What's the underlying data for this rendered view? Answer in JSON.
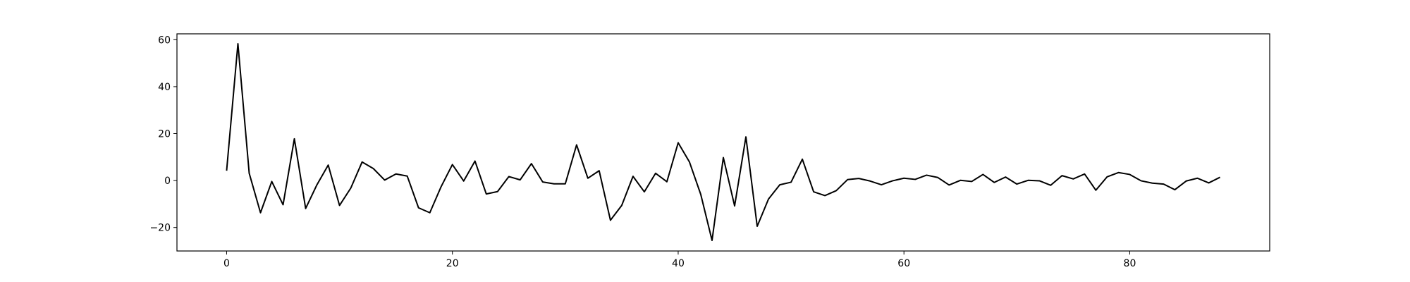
{
  "chart_data": {
    "type": "line",
    "title": "",
    "xlabel": "",
    "ylabel": "",
    "xlim": [
      -4.4,
      92.4
    ],
    "ylim": [
      -30,
      62.5
    ],
    "grid": false,
    "legend": "none",
    "x_ticks": [
      0,
      20,
      40,
      60,
      80
    ],
    "y_ticks": [
      60,
      40,
      20,
      0,
      -20
    ],
    "x_tick_labels": [
      "0",
      "20",
      "40",
      "60",
      "80"
    ],
    "y_tick_labels": [
      "60",
      "40",
      "20",
      "0",
      "−20"
    ],
    "series": [
      {
        "color": "#000000",
        "x": [
          0,
          1,
          2,
          3,
          4,
          5,
          6,
          7,
          8,
          9,
          10,
          11,
          12,
          13,
          14,
          15,
          16,
          17,
          18,
          19,
          20,
          21,
          22,
          23,
          24,
          25,
          26,
          27,
          28,
          29,
          30,
          31,
          32,
          33,
          34,
          35,
          36,
          37,
          38,
          39,
          40,
          41,
          42,
          43,
          44,
          45,
          46,
          47,
          48,
          49,
          50,
          51,
          52,
          53,
          54,
          55,
          56,
          57,
          58,
          59,
          60,
          61,
          62,
          63,
          64,
          65,
          66,
          67,
          68,
          69,
          70,
          71,
          72,
          73,
          74,
          75,
          76,
          77,
          78,
          79,
          80,
          81,
          82,
          83,
          84,
          85,
          86,
          87,
          88
        ],
        "values": [
          4.2,
          58.3,
          3.1,
          -13.7,
          -0.4,
          -10.3,
          17.8,
          -11.9,
          -1.8,
          6.6,
          -10.6,
          -3.2,
          7.9,
          5.1,
          0.2,
          2.8,
          1.9,
          -11.6,
          -13.7,
          -2.6,
          6.8,
          -0.2,
          8.3,
          -5.7,
          -4.7,
          1.7,
          0.3,
          7.2,
          -0.6,
          -1.4,
          -1.4,
          15.2,
          1.0,
          4.2,
          -16.9,
          -10.6,
          1.8,
          -4.8,
          3.1,
          -0.5,
          16.1,
          7.9,
          -5.9,
          -25.5,
          9.8,
          -10.8,
          18.6,
          -19.5,
          -7.9,
          -1.8,
          -0.7,
          9.1,
          -4.8,
          -6.4,
          -4.3,
          0.4,
          0.9,
          -0.2,
          -1.8,
          -0.1,
          1.0,
          0.5,
          2.3,
          1.3,
          -1.9,
          0.1,
          -0.4,
          2.6,
          -0.8,
          1.5,
          -1.5,
          0.1,
          -0.1,
          -2.0,
          2.1,
          0.7,
          2.8,
          -4.1,
          1.6,
          3.4,
          2.6,
          -0.1,
          -1.1,
          -1.5,
          -3.9,
          -0.2,
          1.0,
          -1.0,
          1.4
        ]
      }
    ]
  }
}
